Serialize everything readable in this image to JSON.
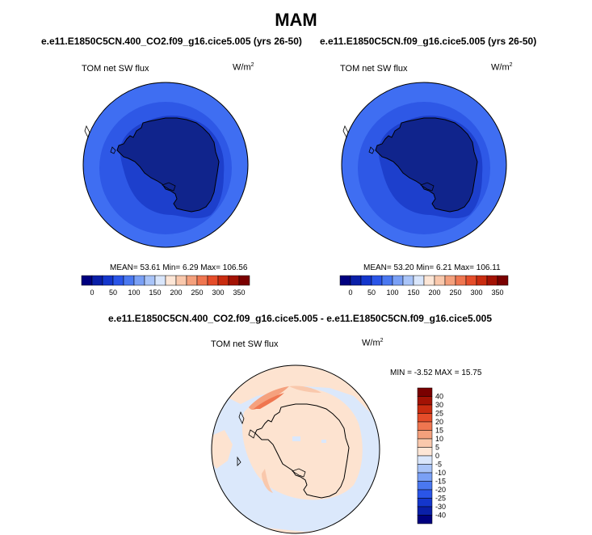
{
  "main_title": "MAM",
  "panels": [
    {
      "case": "e.e11.E1850C5CN.400_CO2.f09_g16.cice5.005 (yrs 26-50)",
      "var": "TOM net SW flux",
      "units": "W/m",
      "units_sup": "2",
      "stats": "MEAN=  53.61  Min=   6.29  Max= 106.56"
    },
    {
      "case": "e.e11.E1850C5CN.f09_g16.cice5.005 (yrs 26-50)",
      "var": "TOM net SW flux",
      "units": "W/m",
      "units_sup": "2",
      "stats": "MEAN=  53.20  Min=   6.21  Max= 106.11"
    }
  ],
  "diff_panel": {
    "case": "e.e11.E1850C5CN.400_CO2.f09_g16.cice5.005 - e.e11.E1850C5CN.f09_g16.cice5.005",
    "var": "TOM net SW flux",
    "units": "W/m",
    "units_sup": "2",
    "stats": "MIN =  -3.52 MAX =  15.75"
  },
  "colors": {
    "abs_bar": [
      "#00007f",
      "#0a1fa8",
      "#1436cc",
      "#2a55e8",
      "#4a78f0",
      "#7aa0f5",
      "#a9c4f8",
      "#d9e6fb",
      "#fde6d6",
      "#f9c8ac",
      "#f4a07c",
      "#ef7650",
      "#e54d2a",
      "#c92c10",
      "#a31204",
      "#7a0000"
    ],
    "diff_bar": [
      "#00007f",
      "#0a1fa8",
      "#1436cc",
      "#2a55e8",
      "#4a78f0",
      "#7aa0f5",
      "#a9c4f8",
      "#d9e6fb",
      "#fde6d6",
      "#f9c8ac",
      "#f4a07c",
      "#ef7650",
      "#e54d2a",
      "#c92c10",
      "#a31204",
      "#7a0000"
    ]
  },
  "chart_data": [
    {
      "type": "heatmap",
      "title": "e.e11.E1850C5CN.400_CO2.f09_g16.cice5.005 (yrs 26-50)",
      "variable": "TOM net SW flux",
      "units": "W/m2",
      "mean": 53.61,
      "min": 6.29,
      "max": 106.56,
      "colorbar_ticks": [
        0,
        50,
        100,
        150,
        200,
        250,
        300,
        350
      ]
    },
    {
      "type": "heatmap",
      "title": "e.e11.E1850C5CN.f09_g16.cice5.005 (yrs 26-50)",
      "variable": "TOM net SW flux",
      "units": "W/m2",
      "mean": 53.2,
      "min": 6.21,
      "max": 106.11,
      "colorbar_ticks": [
        0,
        50,
        100,
        150,
        200,
        250,
        300,
        350
      ]
    },
    {
      "type": "heatmap",
      "title": "e.e11.E1850C5CN.400_CO2.f09_g16.cice5.005 - e.e11.E1850C5CN.f09_g16.cice5.005",
      "variable": "TOM net SW flux",
      "units": "W/m2",
      "min": -3.52,
      "max": 15.75,
      "colorbar_ticks": [
        40,
        30,
        25,
        20,
        15,
        10,
        5,
        0,
        -5,
        -10,
        -15,
        -20,
        -25,
        -30,
        -40
      ]
    }
  ]
}
